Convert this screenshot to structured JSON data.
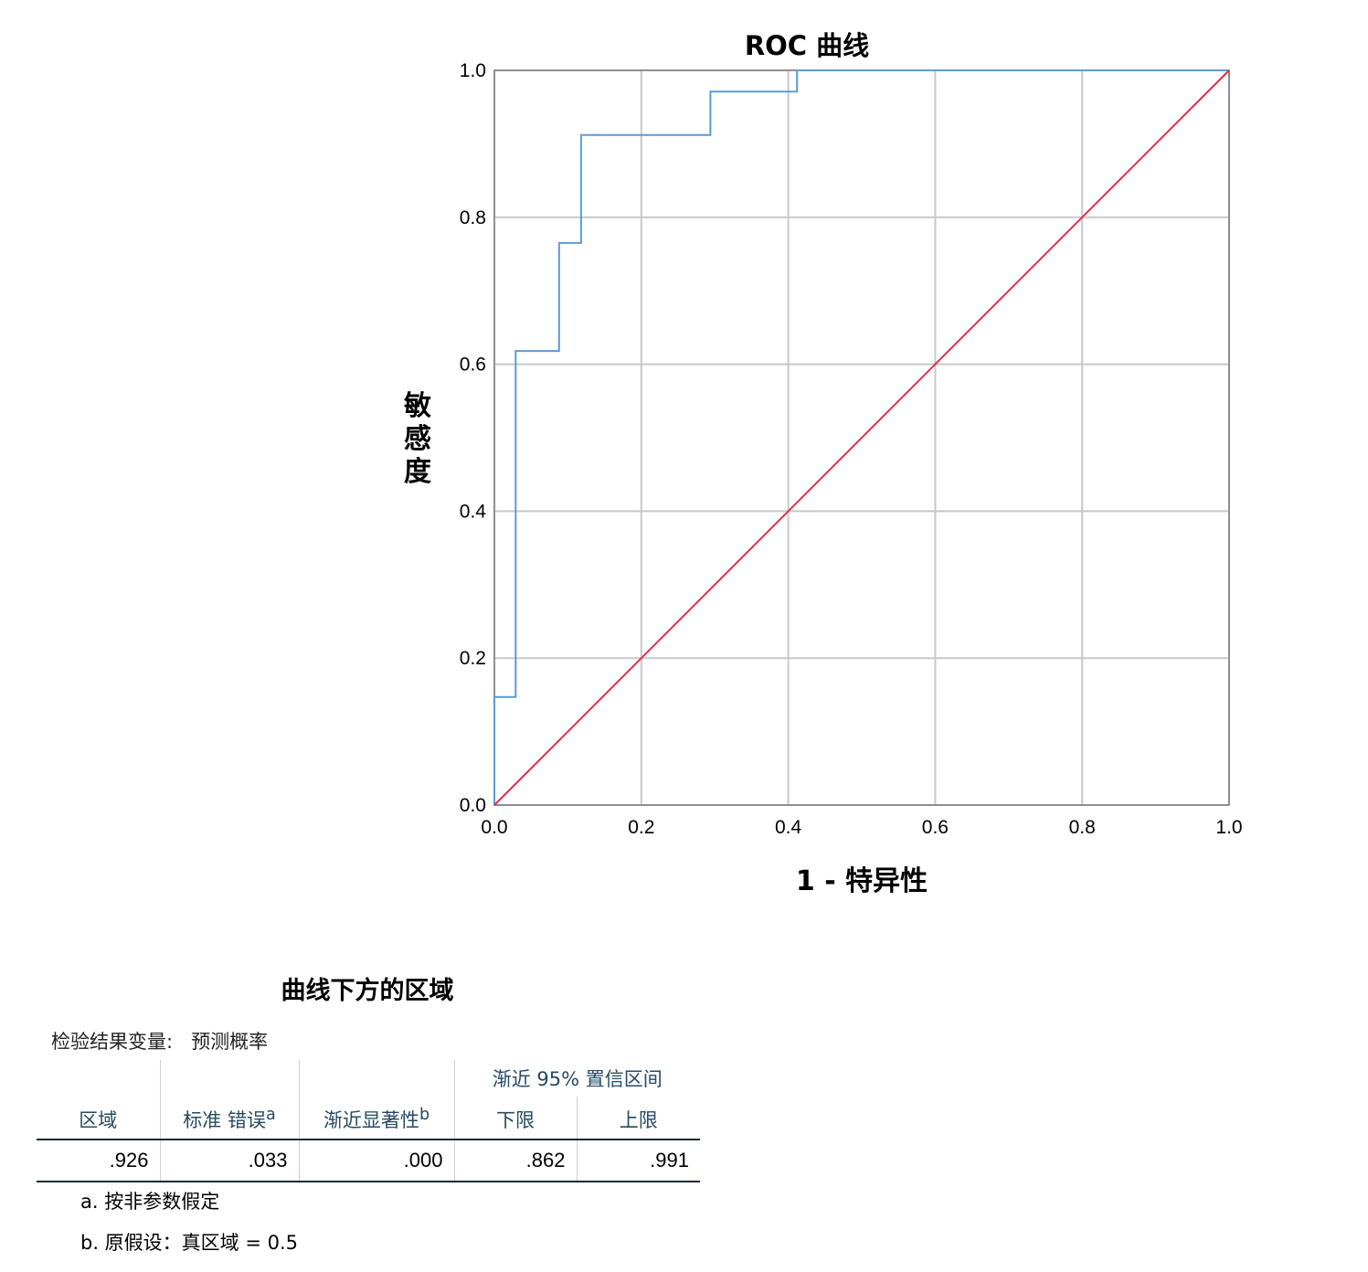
{
  "chart_data": {
    "type": "line",
    "title": "ROC 曲线",
    "xlabel": "1 - 特异性",
    "ylabel": "敏感度",
    "xlim": [
      0,
      1
    ],
    "ylim": [
      0,
      1
    ],
    "grid": true,
    "x_ticks": [
      "0.0",
      "0.2",
      "0.4",
      "0.6",
      "0.8",
      "1.0"
    ],
    "y_ticks": [
      "0.0",
      "0.2",
      "0.4",
      "0.6",
      "0.8",
      "1.0"
    ],
    "series": [
      {
        "color": "#5b9bd5",
        "step": true,
        "x": [
          0,
          0,
          0.029,
          0.029,
          0.088,
          0.088,
          0.118,
          0.118,
          0.294,
          0.294,
          0.412,
          0.412,
          1.0
        ],
        "y": [
          0,
          0.147,
          0.147,
          0.618,
          0.618,
          0.765,
          0.765,
          0.912,
          0.912,
          0.971,
          0.971,
          1.0,
          1.0
        ]
      },
      {
        "color": "#e0314b",
        "x": [
          0,
          1
        ],
        "y": [
          0,
          1
        ]
      }
    ]
  },
  "auc_table": {
    "title": "曲线下方的区域",
    "test_variable_label": "检验结果变量:",
    "test_variable_value": "预测概率",
    "ci_header": "渐近 95% 置信区间",
    "headers": {
      "area": "区域",
      "std_error": "标准 错误",
      "std_error_sup": "a",
      "asymp_sig": "渐近显著性",
      "asymp_sig_sup": "b",
      "lower": "下限",
      "upper": "上限"
    },
    "row": {
      "area": ".926",
      "std_error": ".033",
      "asymp_sig": ".000",
      "lower": ".862",
      "upper": ".991"
    },
    "footnotes": {
      "a": "a. 按非参数假定",
      "b": "b. 原假设：真区域 = 0.5"
    }
  }
}
